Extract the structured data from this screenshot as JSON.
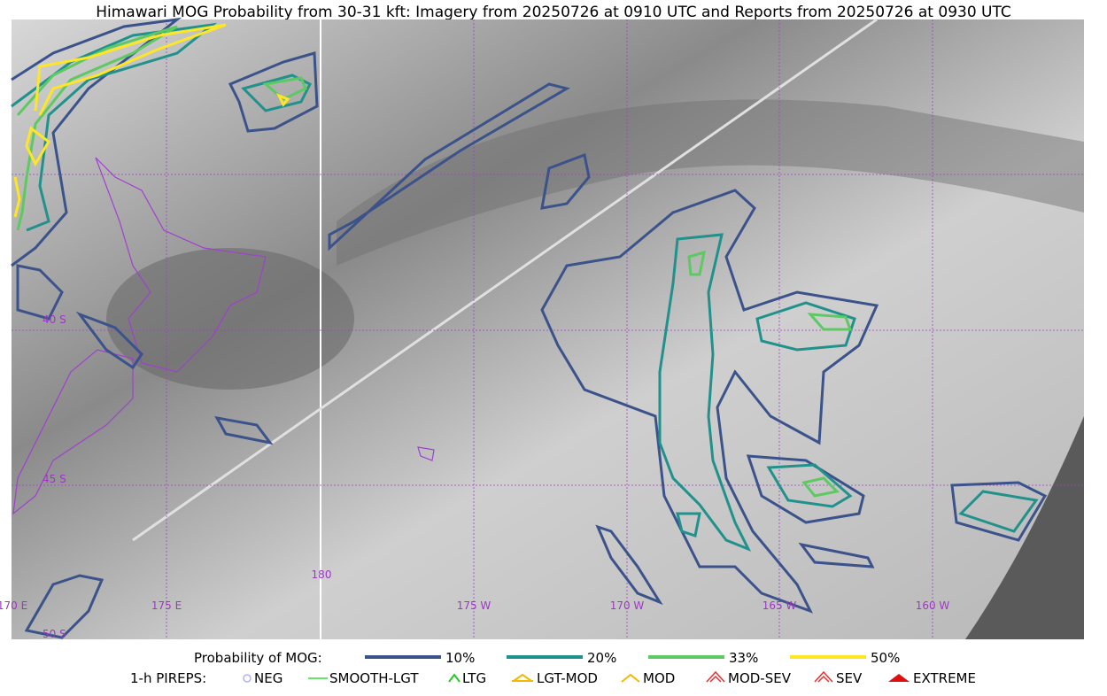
{
  "title": "Himawari MOG Probability from 30-31 kft: Imagery from 20250726 at 0910 UTC and Reports from 20250726 at 0930 UTC",
  "map": {
    "lat_labels": [
      "40 S",
      "45 S",
      "50 S"
    ],
    "lon_labels": [
      "170 E",
      "175 E",
      "180",
      "175 W",
      "170 W",
      "165 W",
      "160 W"
    ]
  },
  "legend": {
    "probability": {
      "label": "Probability of MOG:",
      "items": [
        "10%",
        "20%",
        "33%",
        "50%"
      ]
    },
    "pireps": {
      "label": "1-h PIREPS:",
      "items": [
        "NEG",
        "SMOOTH-LGT",
        "LTG",
        "LGT-MOD",
        "MOD",
        "MOD-SEV",
        "SEV",
        "EXTREME"
      ]
    }
  }
}
